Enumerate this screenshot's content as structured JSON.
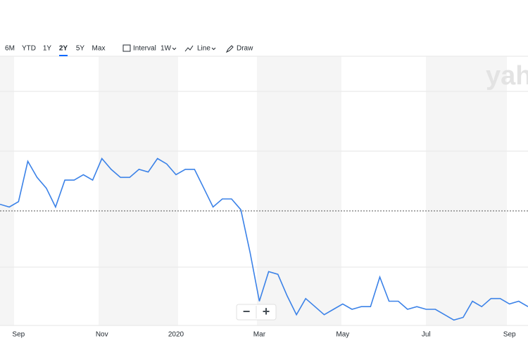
{
  "toolbar": {
    "ranges": [
      "6M",
      "YTD",
      "1Y",
      "2Y",
      "5Y",
      "Max"
    ],
    "selected_range": 3,
    "interval": "Interval",
    "interval_value": "1W",
    "chart_style": "Line",
    "draw": "Draw"
  },
  "watermark": "yah",
  "zoom": {
    "out": "−",
    "in": "+"
  },
  "chart_data": {
    "type": "line",
    "color": "#3b82e8",
    "categories": [
      null,
      null,
      "Sep",
      null,
      null,
      null,
      null,
      null,
      null,
      null,
      null,
      "Nov",
      null,
      null,
      null,
      null,
      null,
      null,
      null,
      "2020",
      null,
      null,
      null,
      null,
      null,
      null,
      null,
      null,
      "Mar",
      null,
      null,
      null,
      null,
      null,
      null,
      null,
      null,
      "May",
      null,
      null,
      null,
      null,
      null,
      null,
      null,
      null,
      "Jul",
      null,
      null,
      null,
      null,
      null,
      null,
      null,
      null,
      "Sep",
      null,
      null
    ],
    "values": [
      45,
      44,
      46,
      61,
      55,
      51,
      44,
      54,
      54,
      56,
      54,
      62,
      58,
      55,
      55,
      58,
      57,
      62,
      60,
      56,
      58,
      58,
      51,
      44,
      47,
      47,
      43,
      27,
      9,
      20,
      19,
      11,
      4,
      10,
      7,
      4,
      6,
      8,
      6,
      7,
      7,
      18,
      9,
      9,
      6,
      7,
      6,
      6,
      4,
      2,
      3,
      9,
      7,
      10,
      10,
      8,
      9,
      7
    ],
    "ylim": [
      0,
      100
    ]
  }
}
